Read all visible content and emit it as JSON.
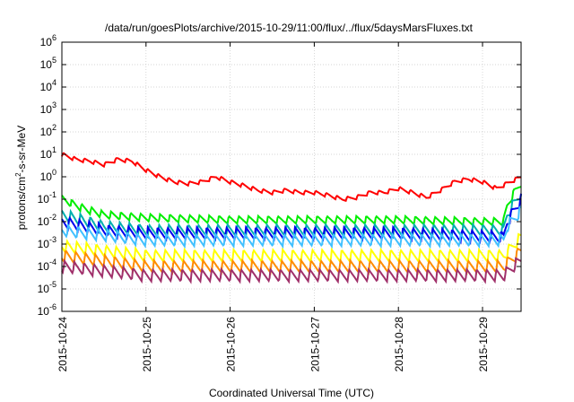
{
  "chart_data": {
    "type": "line",
    "title": "/data/run/goesPlots/archive/2015-10-29/11:00/flux/../flux/5daysMarsFluxes.txt",
    "xlabel": "Coordinated Universal Time (UTC)",
    "ylabel_parts": [
      "protons/cm",
      "2",
      "-s-sr-MeV"
    ],
    "y_scale": "log",
    "ylim": [
      1e-06,
      1000000.0
    ],
    "y_ticks": [
      {
        "base": "10",
        "exp": "-6",
        "value": -6
      },
      {
        "base": "10",
        "exp": "-5",
        "value": -5
      },
      {
        "base": "10",
        "exp": "-4",
        "value": -4
      },
      {
        "base": "10",
        "exp": "-3",
        "value": -3
      },
      {
        "base": "10",
        "exp": "-2",
        "value": -2
      },
      {
        "base": "10",
        "exp": "-1",
        "value": -1
      },
      {
        "base": "10",
        "exp": "0",
        "value": 0
      },
      {
        "base": "10",
        "exp": "1",
        "value": 1
      },
      {
        "base": "10",
        "exp": "2",
        "value": 2
      },
      {
        "base": "10",
        "exp": "3",
        "value": 3
      },
      {
        "base": "10",
        "exp": "4",
        "value": 4
      },
      {
        "base": "10",
        "exp": "5",
        "value": 5
      },
      {
        "base": "10",
        "exp": "6",
        "value": 6
      }
    ],
    "xlim": [
      "2015-10-24",
      "2015-10-29 11:00"
    ],
    "x_ticks": [
      "2015-10-24",
      "2015-10-25",
      "2015-10-26",
      "2015-10-27",
      "2015-10-28",
      "2015-10-29"
    ],
    "grid": true,
    "legend": "none",
    "series": [
      {
        "color": "#ff0000",
        "values": [
          [
            "2015-10-24 00:00",
            10
          ],
          [
            "2015-10-24 04:00",
            6
          ],
          [
            "2015-10-24 08:00",
            5
          ],
          [
            "2015-10-24 12:00",
            3.5
          ],
          [
            "2015-10-24 16:00",
            6
          ],
          [
            "2015-10-24 20:00",
            5
          ],
          [
            "2015-10-25 00:00",
            2
          ],
          [
            "2015-10-25 04:00",
            1
          ],
          [
            "2015-10-25 08:00",
            0.6
          ],
          [
            "2015-10-25 12:00",
            0.5
          ],
          [
            "2015-10-25 16:00",
            0.6
          ],
          [
            "2015-10-25 20:00",
            1
          ],
          [
            "2015-10-26 00:00",
            0.6
          ],
          [
            "2015-10-26 04:00",
            0.4
          ],
          [
            "2015-10-26 08:00",
            0.25
          ],
          [
            "2015-10-26 12:00",
            0.2
          ],
          [
            "2015-10-26 16:00",
            0.25
          ],
          [
            "2015-10-26 20:00",
            0.2
          ],
          [
            "2015-10-27 00:00",
            0.2
          ],
          [
            "2015-10-27 04:00",
            0.15
          ],
          [
            "2015-10-27 08:00",
            0.1
          ],
          [
            "2015-10-27 12:00",
            0.12
          ],
          [
            "2015-10-27 16:00",
            0.2
          ],
          [
            "2015-10-27 20:00",
            0.2
          ],
          [
            "2015-10-28 00:00",
            0.3
          ],
          [
            "2015-10-28 04:00",
            0.2
          ],
          [
            "2015-10-28 08:00",
            0.12
          ],
          [
            "2015-10-28 12:00",
            0.25
          ],
          [
            "2015-10-28 16:00",
            0.6
          ],
          [
            "2015-10-28 20:00",
            0.8
          ],
          [
            "2015-10-29 00:00",
            0.6
          ],
          [
            "2015-10-29 04:00",
            0.3
          ],
          [
            "2015-10-29 08:00",
            0.6
          ],
          [
            "2015-10-29 11:00",
            1
          ]
        ]
      },
      {
        "color": "#00ee00",
        "values": [
          [
            "2015-10-24 00:00",
            0.1
          ],
          [
            "2015-10-24 06:00",
            0.04
          ],
          [
            "2015-10-24 12:00",
            0.02
          ],
          [
            "2015-10-25 00:00",
            0.015
          ],
          [
            "2015-10-26 00:00",
            0.012
          ],
          [
            "2015-10-27 00:00",
            0.012
          ],
          [
            "2015-10-28 00:00",
            0.012
          ],
          [
            "2015-10-29 00:00",
            0.01
          ],
          [
            "2015-10-29 06:00",
            0.01
          ],
          [
            "2015-10-29 07:00",
            0.05
          ],
          [
            "2015-10-29 09:00",
            0.2
          ],
          [
            "2015-10-29 11:00",
            0.5
          ]
        ]
      },
      {
        "color": "#00b0b0",
        "values": [
          [
            "2015-10-24 00:00",
            0.02
          ],
          [
            "2015-10-24 12:00",
            0.006
          ],
          [
            "2015-10-25 00:00",
            0.004
          ],
          [
            "2015-10-26 00:00",
            0.004
          ],
          [
            "2015-10-27 00:00",
            0.004
          ],
          [
            "2015-10-28 00:00",
            0.004
          ],
          [
            "2015-10-29 06:00",
            0.004
          ],
          [
            "2015-10-29 07:00",
            0.02
          ],
          [
            "2015-10-29 11:00",
            0.2
          ]
        ]
      },
      {
        "color": "#0000ee",
        "values": [
          [
            "2015-10-24 00:00",
            0.01
          ],
          [
            "2015-10-24 12:00",
            0.004
          ],
          [
            "2015-10-25 00:00",
            0.003
          ],
          [
            "2015-10-26 00:00",
            0.003
          ],
          [
            "2015-10-27 00:00",
            0.003
          ],
          [
            "2015-10-28 00:00",
            0.003
          ],
          [
            "2015-10-29 06:00",
            0.002
          ],
          [
            "2015-10-29 07:00",
            0.01
          ],
          [
            "2015-10-29 11:00",
            0.1
          ]
        ]
      },
      {
        "color": "#40c0ff",
        "values": [
          [
            "2015-10-24 00:00",
            0.004
          ],
          [
            "2015-10-25 00:00",
            0.0015
          ],
          [
            "2015-10-26 00:00",
            0.0015
          ],
          [
            "2015-10-27 00:00",
            0.0015
          ],
          [
            "2015-10-28 00:00",
            0.0015
          ],
          [
            "2015-10-29 06:00",
            0.0015
          ],
          [
            "2015-10-29 07:00",
            0.006
          ],
          [
            "2015-10-29 11:00",
            0.03
          ]
        ]
      },
      {
        "color": "#ffff00",
        "values": [
          [
            "2015-10-24 00:00",
            0.0008
          ],
          [
            "2015-10-25 00:00",
            0.0003
          ],
          [
            "2015-10-26 00:00",
            0.0003
          ],
          [
            "2015-10-27 00:00",
            0.0003
          ],
          [
            "2015-10-28 00:00",
            0.0003
          ],
          [
            "2015-10-29 06:00",
            0.0003
          ],
          [
            "2015-10-29 11:00",
            0.002
          ]
        ]
      },
      {
        "color": "#ff8c00",
        "values": [
          [
            "2015-10-24 00:00",
            0.0003
          ],
          [
            "2015-10-25 00:00",
            0.0001
          ],
          [
            "2015-10-26 00:00",
            0.0001
          ],
          [
            "2015-10-27 00:00",
            0.0001
          ],
          [
            "2015-10-28 00:00",
            0.0001
          ],
          [
            "2015-10-29 06:00",
            0.0001
          ],
          [
            "2015-10-29 11:00",
            0.0005
          ]
        ]
      },
      {
        "color": "#a0306a",
        "values": [
          [
            "2015-10-24 00:00",
            0.0001
          ],
          [
            "2015-10-25 00:00",
            4e-05
          ],
          [
            "2015-10-26 00:00",
            4e-05
          ],
          [
            "2015-10-27 00:00",
            4e-05
          ],
          [
            "2015-10-28 00:00",
            4e-05
          ],
          [
            "2015-10-29 06:00",
            4e-05
          ],
          [
            "2015-10-29 11:00",
            0.0002
          ]
        ]
      }
    ]
  }
}
